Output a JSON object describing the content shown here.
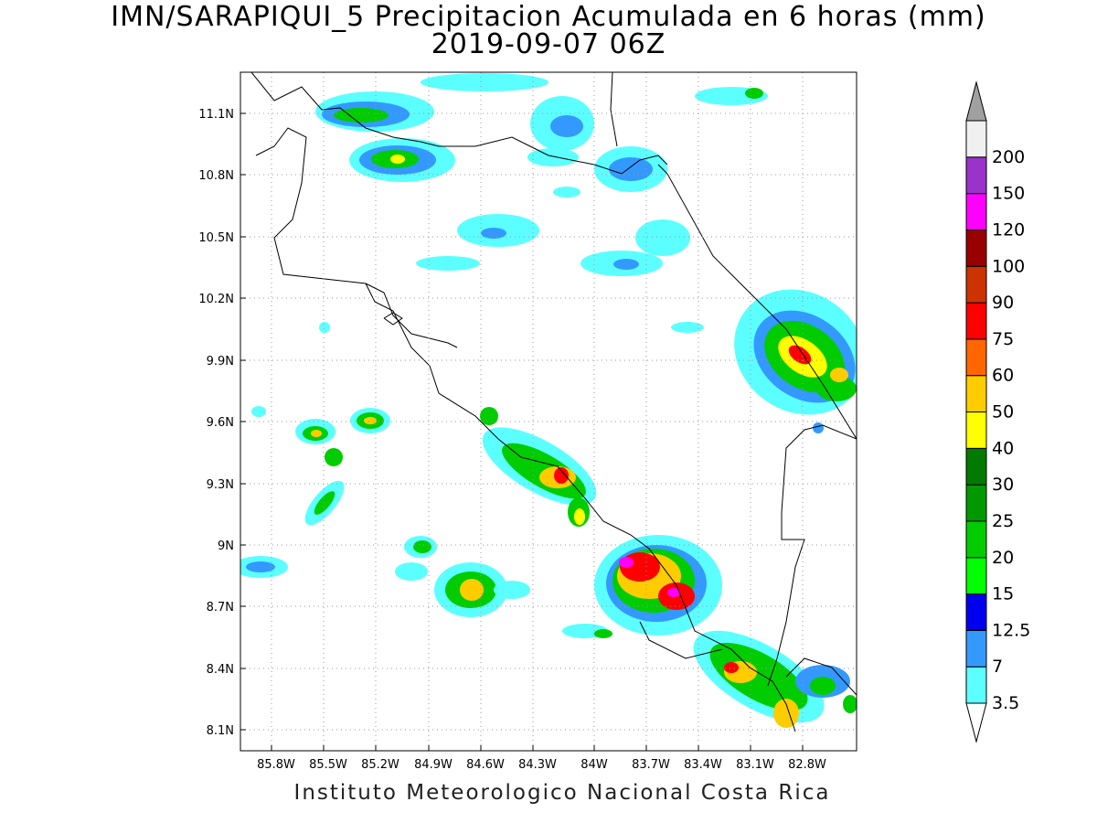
{
  "title": {
    "line1": "IMN/SARAPIQUI_5 Precipitacion Acumulada en 6 horas (mm)",
    "line2": "2019-09-07 06Z"
  },
  "footer": "Instituto Meteorologico Nacional Costa Rica",
  "map": {
    "lat_ticks": [
      "11.1N",
      "10.8N",
      "10.5N",
      "10.2N",
      "9.9N",
      "9.6N",
      "9.3N",
      "9N",
      "8.7N",
      "8.4N",
      "8.1N"
    ],
    "lon_ticks": [
      "85.8W",
      "85.5W",
      "85.2W",
      "84.9W",
      "84.6W",
      "84.3W",
      "84W",
      "83.7W",
      "83.4W",
      "83.1W",
      "82.8W"
    ],
    "grid": "dotted"
  },
  "colorbar": {
    "levels": [
      {
        "label": "3.5",
        "color": "#5cffff"
      },
      {
        "label": "7",
        "color": "#3399ff"
      },
      {
        "label": "12.5",
        "color": "#0000ee"
      },
      {
        "label": "15",
        "color": "#00ff00"
      },
      {
        "label": "20",
        "color": "#00cc00"
      },
      {
        "label": "25",
        "color": "#009900"
      },
      {
        "label": "30",
        "color": "#007a00"
      },
      {
        "label": "40",
        "color": "#ffff00"
      },
      {
        "label": "50",
        "color": "#ffcc00"
      },
      {
        "label": "60",
        "color": "#ff6600"
      },
      {
        "label": "75",
        "color": "#ff0000"
      },
      {
        "label": "90",
        "color": "#cc3300"
      },
      {
        "label": "100",
        "color": "#990000"
      },
      {
        "label": "120",
        "color": "#ff00ff"
      },
      {
        "label": "150",
        "color": "#9933cc"
      },
      {
        "label": "200",
        "color": "#f0f0f0"
      }
    ],
    "over_color": "#a0a0a0",
    "under_color": "#ffffff"
  }
}
